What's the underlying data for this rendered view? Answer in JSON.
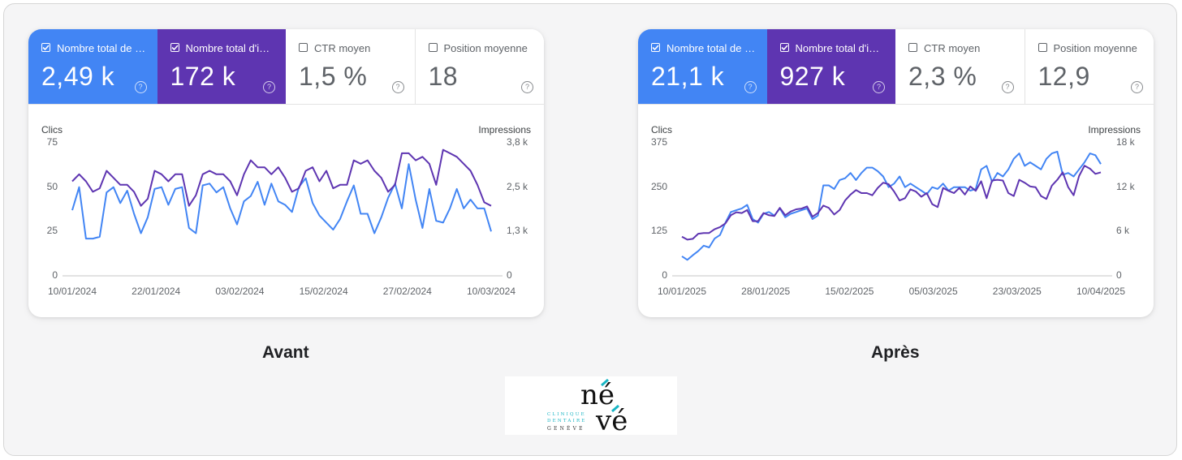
{
  "panels": [
    {
      "caption": "Avant",
      "metrics": [
        {
          "label": "Nombre total de …",
          "value": "2,49 k",
          "checked": true,
          "color": "#4285f4"
        },
        {
          "label": "Nombre total d'i…",
          "value": "172 k",
          "checked": true,
          "color": "#5e35b1"
        },
        {
          "label": "CTR moyen",
          "value": "1,5 %",
          "checked": false
        },
        {
          "label": "Position moyenne",
          "value": "18",
          "checked": false
        }
      ],
      "help_icon": "?"
    },
    {
      "caption": "Après",
      "metrics": [
        {
          "label": "Nombre total de …",
          "value": "21,1 k",
          "checked": true,
          "color": "#4285f4"
        },
        {
          "label": "Nombre total d'i…",
          "value": "927 k",
          "checked": true,
          "color": "#5e35b1"
        },
        {
          "label": "CTR moyen",
          "value": "2,3 %",
          "checked": false
        },
        {
          "label": "Position moyenne",
          "value": "12,9",
          "checked": false
        }
      ],
      "help_icon": "?"
    }
  ],
  "logo": {
    "text_top": "né",
    "text_bottom": "vé",
    "line1": "CLINIQUE",
    "line2": "DENTAIRE",
    "line3": "GENÈVE",
    "accent": "#18b5c4"
  },
  "chart_data": [
    {
      "type": "line",
      "ylabel": "Clics",
      "y2label": "Impressions",
      "ylim": [
        0,
        75
      ],
      "y2lim": [
        0,
        3.8
      ],
      "yticks": [
        "0",
        "25",
        "50",
        "75"
      ],
      "y2ticks": [
        "0",
        "1,3 k",
        "2,5 k",
        "3,8 k"
      ],
      "xticks": [
        "10/01/2024",
        "22/01/2024",
        "03/02/2024",
        "15/02/2024",
        "27/02/2024",
        "10/03/2024"
      ],
      "grid": false,
      "series": [
        {
          "name": "Clics",
          "axis": "left",
          "color": "#4285f4",
          "values": [
            37,
            50,
            21,
            21,
            22,
            47,
            50,
            41,
            48,
            35,
            24,
            33,
            49,
            50,
            40,
            49,
            50,
            27,
            24,
            51,
            52,
            47,
            50,
            38,
            29,
            42,
            45,
            53,
            40,
            52,
            42,
            40,
            36,
            50,
            55,
            41,
            34,
            30,
            26,
            32,
            42,
            51,
            35,
            35,
            24,
            33,
            44,
            52,
            38,
            63,
            43,
            27,
            49,
            31,
            30,
            38,
            49,
            38,
            43,
            38,
            38,
            25
          ]
        },
        {
          "name": "Impressions",
          "axis": "right",
          "color": "#5e35b1",
          "values": [
            2.7,
            2.9,
            2.7,
            2.4,
            2.5,
            3.0,
            2.8,
            2.6,
            2.6,
            2.4,
            2.0,
            2.2,
            3.0,
            2.9,
            2.7,
            2.9,
            2.9,
            2.0,
            2.3,
            2.9,
            3.0,
            2.9,
            2.9,
            2.7,
            2.3,
            2.9,
            3.3,
            3.1,
            3.1,
            2.9,
            3.1,
            2.8,
            2.4,
            2.5,
            3.0,
            3.1,
            2.7,
            3.0,
            2.5,
            2.6,
            2.6,
            3.3,
            3.2,
            3.3,
            3.0,
            2.8,
            2.4,
            2.6,
            3.5,
            3.5,
            3.3,
            3.4,
            3.2,
            2.6,
            3.6,
            3.5,
            3.4,
            3.2,
            3.0,
            2.6,
            2.1,
            2.0
          ]
        }
      ]
    },
    {
      "type": "line",
      "ylabel": "Clics",
      "y2label": "Impressions",
      "ylim": [
        0,
        375
      ],
      "y2lim": [
        0,
        18
      ],
      "yticks": [
        "0",
        "125",
        "250",
        "375"
      ],
      "y2ticks": [
        "0",
        "6 k",
        "12 k",
        "18 k"
      ],
      "xticks": [
        "10/01/2025",
        "28/01/2025",
        "15/02/2025",
        "05/03/2025",
        "23/03/2025",
        "10/04/2025"
      ],
      "grid": false,
      "series": [
        {
          "name": "Clics",
          "axis": "left",
          "color": "#4285f4",
          "values": [
            55,
            45,
            58,
            70,
            85,
            80,
            105,
            115,
            150,
            180,
            185,
            190,
            200,
            160,
            150,
            175,
            180,
            170,
            190,
            165,
            175,
            180,
            185,
            190,
            160,
            170,
            255,
            255,
            245,
            270,
            275,
            290,
            270,
            290,
            305,
            305,
            295,
            280,
            250,
            260,
            280,
            250,
            260,
            250,
            240,
            230,
            250,
            245,
            260,
            240,
            250,
            250,
            250,
            240,
            245,
            300,
            310,
            265,
            290,
            280,
            300,
            330,
            345,
            310,
            320,
            310,
            300,
            330,
            345,
            350,
            285,
            290,
            280,
            300,
            320,
            345,
            340,
            315
          ]
        },
        {
          "name": "Impressions",
          "axis": "right",
          "color": "#5e35b1",
          "values": [
            5.3,
            4.9,
            5.0,
            5.7,
            5.8,
            5.8,
            6.3,
            6.6,
            7.1,
            8.2,
            8.6,
            8.5,
            8.9,
            7.4,
            7.4,
            8.5,
            8.2,
            8.1,
            9.2,
            8.2,
            8.7,
            9.0,
            9.1,
            9.4,
            8.0,
            8.5,
            9.5,
            9.2,
            8.3,
            8.9,
            10.2,
            11.0,
            11.6,
            11.2,
            11.2,
            10.9,
            11.9,
            12.6,
            12.4,
            11.4,
            10.2,
            10.5,
            11.7,
            11.4,
            10.7,
            11.2,
            9.7,
            9.3,
            11.9,
            11.5,
            11.2,
            11.9,
            11.0,
            12.1,
            11.5,
            12.8,
            10.5,
            12.9,
            13.0,
            12.9,
            11.2,
            10.8,
            13.0,
            12.6,
            12.1,
            12.0,
            10.8,
            10.4,
            12.2,
            13.0,
            14.0,
            12.0,
            10.9,
            13.5,
            14.9,
            14.5,
            13.8,
            14.0
          ]
        }
      ]
    }
  ]
}
